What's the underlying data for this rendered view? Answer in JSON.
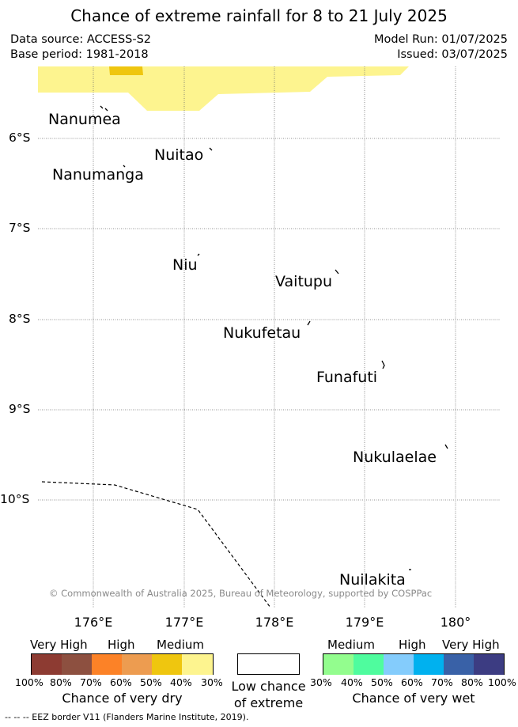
{
  "title": "Chance of extreme rainfall for 8 to 21 July 2025",
  "meta": {
    "data_source": "Data source: ACCESS-S2",
    "base_period": "Base period: 1981-2018",
    "model_run": "Model Run: 01/07/2025",
    "issued": "Issued: 03/07/2025"
  },
  "map": {
    "latitude_labels": [
      "6°S",
      "7°S",
      "8°S",
      "9°S",
      "10°S"
    ],
    "longitude_labels": [
      "176°E",
      "177°E",
      "178°E",
      "179°E",
      "180°"
    ],
    "places": [
      "Nanumea",
      "Nuitao",
      "Nanumanga",
      "Niu",
      "Vaitupu",
      "Nukufetau",
      "Funafuti",
      "Nukulaelae",
      "Nuilakita"
    ],
    "copyright": "© Commonwealth of Australia 2025, Bureau of Meteorology, supported by COSPPac",
    "shading": [
      {
        "category": "Medium (dry)",
        "color": "#fdf48f"
      },
      {
        "category": "High (dry)",
        "color": "#efc60f"
      }
    ]
  },
  "legend": {
    "dry": {
      "headers": [
        "Very High",
        "High",
        "Medium"
      ],
      "colors": [
        "#8d3b32",
        "#8d5040",
        "#fc8227",
        "#ed9c50",
        "#efc60f",
        "#fdf48f"
      ],
      "ticks": [
        "100%",
        "80%",
        "70%",
        "60%",
        "50%",
        "40%",
        "30%"
      ],
      "caption": "Chance of very dry"
    },
    "low": {
      "caption_line1": "Low chance",
      "caption_line2": "of extreme",
      "color": "#ffffff"
    },
    "wet": {
      "headers": [
        "Medium",
        "High",
        "Very High"
      ],
      "colors": [
        "#93fd8e",
        "#4ffc9e",
        "#84ccfc",
        "#00b1ef",
        "#3961a7",
        "#3c3c82"
      ],
      "ticks": [
        "30%",
        "40%",
        "50%",
        "60%",
        "70%",
        "80%",
        "100%"
      ],
      "caption": "Chance of very wet"
    }
  },
  "footnote": "-- -- -- EEZ border V11 (Flanders Marine Institute, 2019)."
}
